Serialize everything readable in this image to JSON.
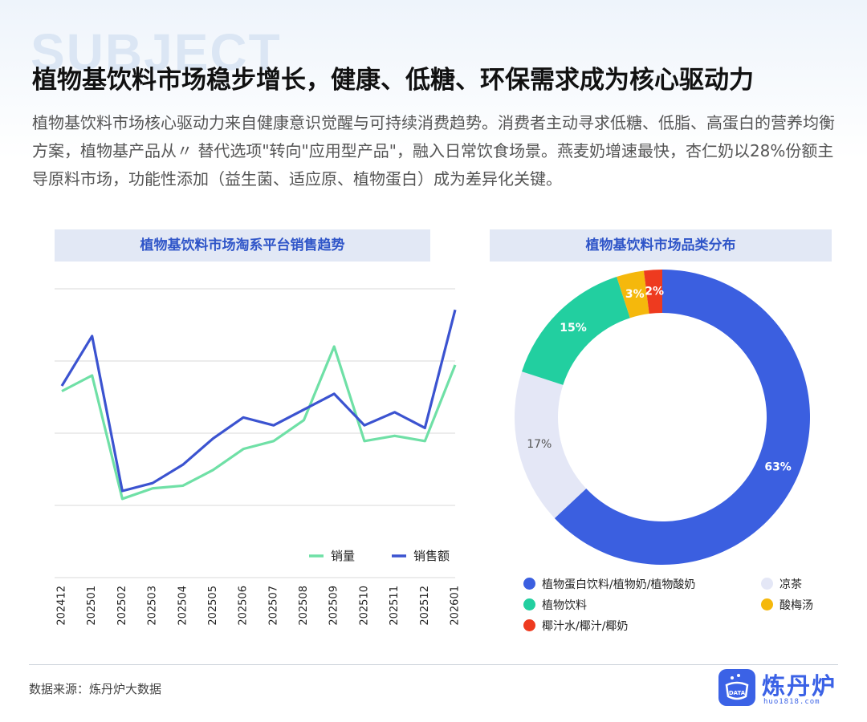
{
  "background_word": "SUBJECT",
  "title": "植物基饮料市场稳步增长，健康、低糖、环保需求成为核心驱动力",
  "subtitle": "植物基饮料市场核心驱动力来自健康意识觉醒与可持续消费趋势。消费者主动寻求低糖、低脂、高蛋白的营养均衡方案，植物基产品从〃 替代选项\"转向\"应用型产品\"，融入日常饮食场景。燕麦奶增速最快，杏仁奶以28%份额主导原料市场，功能性添加（益生菌、适应原、植物蛋白）成为差异化关键。",
  "chart_data": [
    {
      "type": "line",
      "title": "植物基饮料市场淘系平台销售趋势",
      "x": [
        "202412",
        "202501",
        "202502",
        "202503",
        "202504",
        "202505",
        "202506",
        "202507",
        "202508",
        "202509",
        "202510",
        "202511",
        "202512",
        "202601"
      ],
      "series": [
        {
          "name": "销量",
          "color": "#6fe0a6",
          "values": [
            71,
            77,
            30,
            34,
            35,
            41,
            49,
            52,
            60,
            88,
            52,
            54,
            52,
            81
          ]
        },
        {
          "name": "销售额",
          "color": "#3b53d0",
          "values": [
            73,
            92,
            33,
            36,
            43,
            53,
            61,
            58,
            64,
            70,
            58,
            63,
            57,
            102
          ]
        }
      ],
      "yaxis_labels_shown": false,
      "grid": true,
      "legend_position": "bottom-right"
    },
    {
      "type": "pie",
      "title": "植物基饮料市场品类分布",
      "donut": true,
      "slices": [
        {
          "label": "植物蛋白饮料/植物奶/植物酸奶",
          "value": 63,
          "text": "63%",
          "color": "#3b5fe0"
        },
        {
          "label": "凉茶",
          "value": 17,
          "text": "17%",
          "color": "#e4e7f6"
        },
        {
          "label": "植物饮料",
          "value": 15,
          "text": "15%",
          "color": "#22cfa0"
        },
        {
          "label": "酸梅汤",
          "value": 3,
          "text": "3%",
          "color": "#f5b80c"
        },
        {
          "label": "椰汁水/椰汁/椰奶",
          "value": 2,
          "text": "2%",
          "color": "#ee3a1f"
        }
      ],
      "legend_position": "bottom"
    }
  ],
  "footer": {
    "source": "数据来源：炼丹炉大数据",
    "logo_name": "炼丹炉",
    "logo_badge": "DATA",
    "logo_url": "huo1818.com"
  }
}
